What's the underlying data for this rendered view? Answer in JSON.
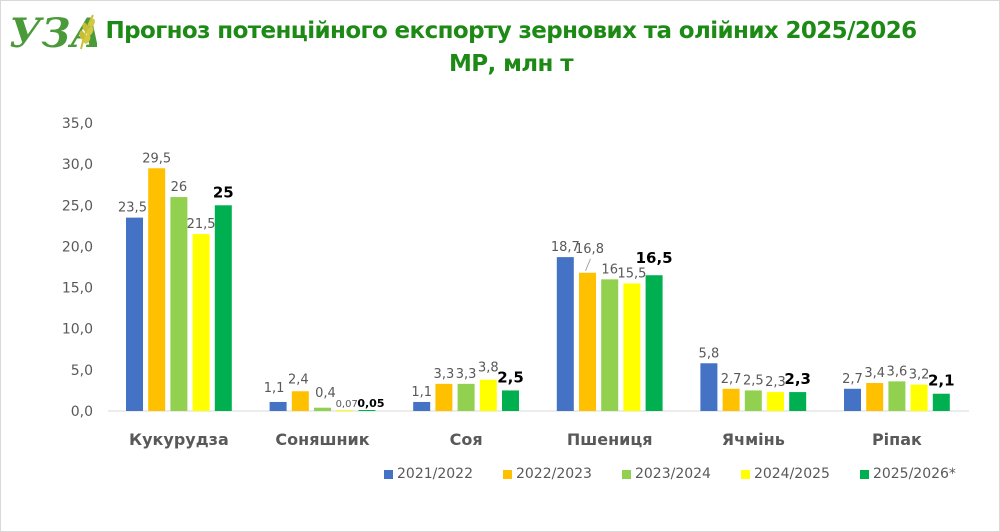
{
  "header": {
    "logo_text": "УЗА",
    "title_line1": "Прогноз потенційного експорту зернових та олійних 2025/2026",
    "title_line2": "МР, млн т"
  },
  "colors": {
    "title": "#1e8a16",
    "series": [
      "#4472c4",
      "#ffc000",
      "#92d050",
      "#ffff00",
      "#00b050"
    ],
    "axis_text": "#595959",
    "gridline": "#d9d9d9"
  },
  "chart_data": {
    "type": "bar",
    "title": "Прогноз потенційного експорту зернових та олійних 2025/2026 МР, млн т",
    "xlabel": "",
    "ylabel": "",
    "ylim": [
      0,
      35
    ],
    "yticks": [
      "0,0",
      "5,0",
      "10,0",
      "15,0",
      "20,0",
      "25,0",
      "30,0",
      "35,0"
    ],
    "grid": false,
    "legend_position": "bottom-right",
    "categories": [
      "Кукурудза",
      "Соняшник",
      "Соя",
      "Пшениця",
      "Ячмінь",
      "Ріпак"
    ],
    "series": [
      {
        "name": "2021/2022",
        "values": [
          23.5,
          1.1,
          1.1,
          18.7,
          5.8,
          2.7
        ],
        "labels": [
          "23,5",
          "1,1",
          "1,1",
          "18,7",
          "5,8",
          "2,7"
        ]
      },
      {
        "name": "2022/2023",
        "values": [
          29.5,
          2.4,
          3.3,
          16.8,
          2.7,
          3.4
        ],
        "labels": [
          "29,5",
          "2,4",
          "3,3",
          "16,8",
          "2,7",
          "3,4"
        ]
      },
      {
        "name": "2023/2024",
        "values": [
          26,
          0.4,
          3.3,
          16,
          2.5,
          3.6
        ],
        "labels": [
          "26",
          "0,4",
          "3,3",
          "16",
          "2,5",
          "3,6"
        ]
      },
      {
        "name": "2024/2025",
        "values": [
          21.5,
          0.07,
          3.8,
          15.5,
          2.3,
          3.2
        ],
        "labels": [
          "21,5",
          "0,07",
          "3,8",
          "15,5",
          "2,3",
          "3,2"
        ]
      },
      {
        "name": "2025/2026*",
        "values": [
          25,
          0.05,
          2.5,
          16.5,
          2.3,
          2.1
        ],
        "labels": [
          "25",
          "0,05",
          "2,5",
          "16,5",
          "2,3",
          "2,1"
        ],
        "bold_labels": true
      }
    ]
  }
}
